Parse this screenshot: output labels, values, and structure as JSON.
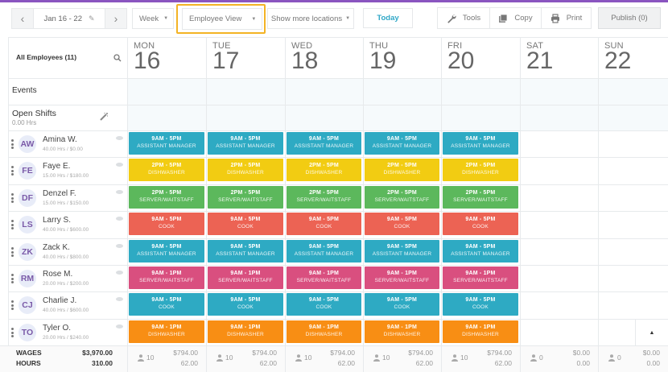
{
  "toolbar": {
    "date_range": "Jan 16 - 22",
    "view_period": "Week",
    "view_mode": "Employee View",
    "locations": "Show more locations",
    "today": "Today",
    "tools": "Tools",
    "copy": "Copy",
    "print": "Print",
    "publish": "Publish (0)"
  },
  "colors": {
    "accent_purple": "#8a55c0",
    "highlight": "#f3b325",
    "teal": "#2eaac3",
    "yellow": "#f2cc12",
    "green": "#5cb85c",
    "red": "#ec6354",
    "pink": "#d94f7f",
    "orange": "#f88e14"
  },
  "grid": {
    "all_employees": "All Employees (11)",
    "events_label": "Events",
    "open_shifts_label": "Open Shifts",
    "open_shifts_hours": "0.00 Hrs",
    "days": [
      {
        "name": "MON",
        "num": "16"
      },
      {
        "name": "TUE",
        "num": "17"
      },
      {
        "name": "WED",
        "num": "18"
      },
      {
        "name": "THU",
        "num": "19"
      },
      {
        "name": "FRI",
        "num": "20"
      },
      {
        "name": "SAT",
        "num": "21"
      },
      {
        "name": "SUN",
        "num": "22"
      }
    ]
  },
  "employees": [
    {
      "initials": "AW",
      "name": "Amina W.",
      "sub": "40.00 Hrs / $0.00",
      "time": "9AM - 5PM",
      "role": "ASSISTANT MANAGER",
      "color": "#2eaac3"
    },
    {
      "initials": "FE",
      "name": "Faye E.",
      "sub": "15.00 Hrs / $180.00",
      "time": "2PM - 5PM",
      "role": "DISHWASHER",
      "color": "#f2cc12"
    },
    {
      "initials": "DF",
      "name": "Denzel F.",
      "sub": "15.00 Hrs / $150.00",
      "time": "2PM - 5PM",
      "role": "SERVER/WAITSTAFF",
      "color": "#5cb85c"
    },
    {
      "initials": "LS",
      "name": "Larry S.",
      "sub": "40.00 Hrs / $600.00",
      "time": "9AM - 5PM",
      "role": "COOK",
      "color": "#ec6354"
    },
    {
      "initials": "ZK",
      "name": "Zack K.",
      "sub": "40.00 Hrs / $800.00",
      "time": "9AM - 5PM",
      "role": "ASSISTANT MANAGER",
      "color": "#2eaac3"
    },
    {
      "initials": "RM",
      "name": "Rose M.",
      "sub": "20.00 Hrs / $200.00",
      "time": "9AM - 1PM",
      "role": "SERVER/WAITSTAFF",
      "color": "#d94f7f"
    },
    {
      "initials": "CJ",
      "name": "Charlie J.",
      "sub": "40.00 Hrs / $600.00",
      "time": "9AM - 5PM",
      "role": "COOK",
      "color": "#2eaac3"
    },
    {
      "initials": "TO",
      "name": "Tyler O.",
      "sub": "20.00 Hrs / $240.00",
      "time": "9AM - 1PM",
      "role": "DISHWASHER",
      "color": "#f88e14"
    }
  ],
  "footer": {
    "wages_label": "WAGES",
    "hours_label": "HOURS",
    "wages_total": "$3,970.00",
    "hours_total": "310.00",
    "days": [
      {
        "count": "10",
        "wages": "$794.00",
        "hours": "62.00"
      },
      {
        "count": "10",
        "wages": "$794.00",
        "hours": "62.00"
      },
      {
        "count": "10",
        "wages": "$794.00",
        "hours": "62.00"
      },
      {
        "count": "10",
        "wages": "$794.00",
        "hours": "62.00"
      },
      {
        "count": "10",
        "wages": "$794.00",
        "hours": "62.00"
      },
      {
        "count": "0",
        "wages": "$0.00",
        "hours": "0.00"
      },
      {
        "count": "0",
        "wages": "$0.00",
        "hours": "0.00"
      }
    ]
  }
}
